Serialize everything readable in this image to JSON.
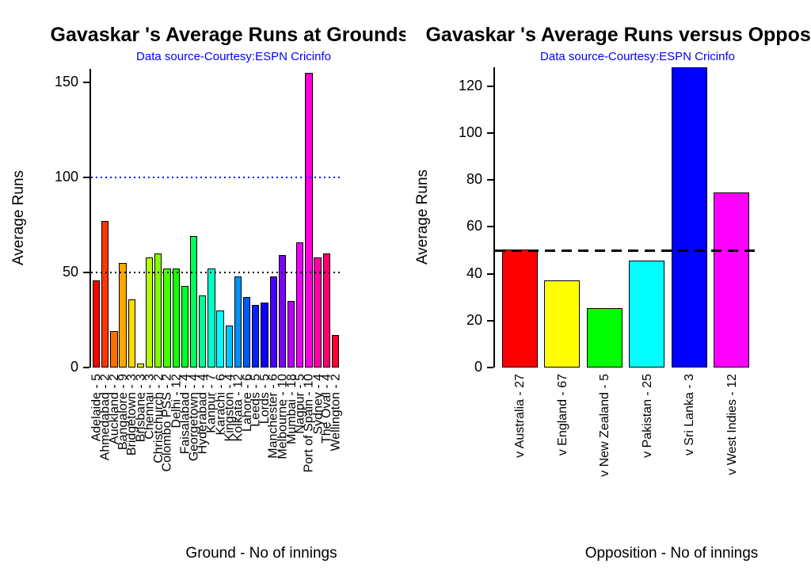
{
  "figure": {
    "background": "#ffffff"
  },
  "chart_data": {
    "see": "charts"
  },
  "charts": [
    {
      "type": "bar",
      "title": "Gavaskar 's Average Runs at Grounds",
      "subtitle": "Data source-Courtesy:ESPN Cricinfo",
      "subtitle_color": "#0000ff",
      "xlabel": "Ground - No of innings",
      "ylabel": "Average Runs",
      "ylim": [
        0,
        157
      ],
      "yticks": [
        0,
        50,
        100,
        150
      ],
      "grid": false,
      "legend": "none",
      "palette": "rainbow",
      "ref_lines": [
        {
          "y": 100,
          "color": "#0000ff",
          "style": "dotted",
          "label": "reference-100"
        },
        {
          "y": 50,
          "color": "#000000",
          "style": "dotted",
          "label": "reference-50"
        }
      ],
      "categories": [
        "Adelaide - 5",
        "Ahmedabad - 2",
        "Auckland - 2",
        "Bangalore - 9",
        "Bridgetown - 3",
        "Brisbane - 3",
        "Chennai - 3",
        "Christchurch - 2",
        "Colombo PSS - 2",
        "Delhi - 12",
        "Faisalabad - 4",
        "Georgetown - 4",
        "Hyderabad - 4",
        "Kanpur - 7",
        "Karachi - 6",
        "Kingston - 4",
        "Kolkata - 12",
        "Lahore - 6",
        "Leeds - 5",
        "Lords - 5",
        "Manchester - 6",
        "Melbourne - 10",
        "Mumbai - 18",
        "Nagpur - 5",
        "Port of Spain - 10",
        "Sydney - 4",
        "The Oval - 4",
        "Wellington - 2"
      ],
      "values": [
        46,
        77,
        19,
        55,
        36,
        2,
        58,
        60,
        52,
        52,
        43,
        69,
        38,
        52,
        30,
        22,
        48,
        37,
        33,
        34,
        48,
        59,
        35,
        66,
        155,
        58,
        60,
        17
      ]
    },
    {
      "type": "bar",
      "title": "Gavaskar 's Average Runs versus Opposition",
      "subtitle": "Data source-Courtesy:ESPN Cricinfo",
      "subtitle_color": "#0000ff",
      "xlabel": "Opposition - No of innings",
      "ylabel": "Average Runs",
      "ylim": [
        0,
        128
      ],
      "yticks": [
        0,
        20,
        40,
        60,
        80,
        100,
        120
      ],
      "grid": false,
      "legend": "none",
      "palette": "rainbow",
      "ref_lines": [
        {
          "y": 50,
          "color": "#000000",
          "style": "dashed",
          "label": "reference-50"
        }
      ],
      "categories": [
        "v Australia - 27",
        "v England - 67",
        "v New Zealand - 5",
        "v Pakistan - 25",
        "v Sri Lanka - 3",
        "v West Indies - 12"
      ],
      "values": [
        50.3,
        37.2,
        25.4,
        45.5,
        128,
        74.8
      ]
    }
  ]
}
